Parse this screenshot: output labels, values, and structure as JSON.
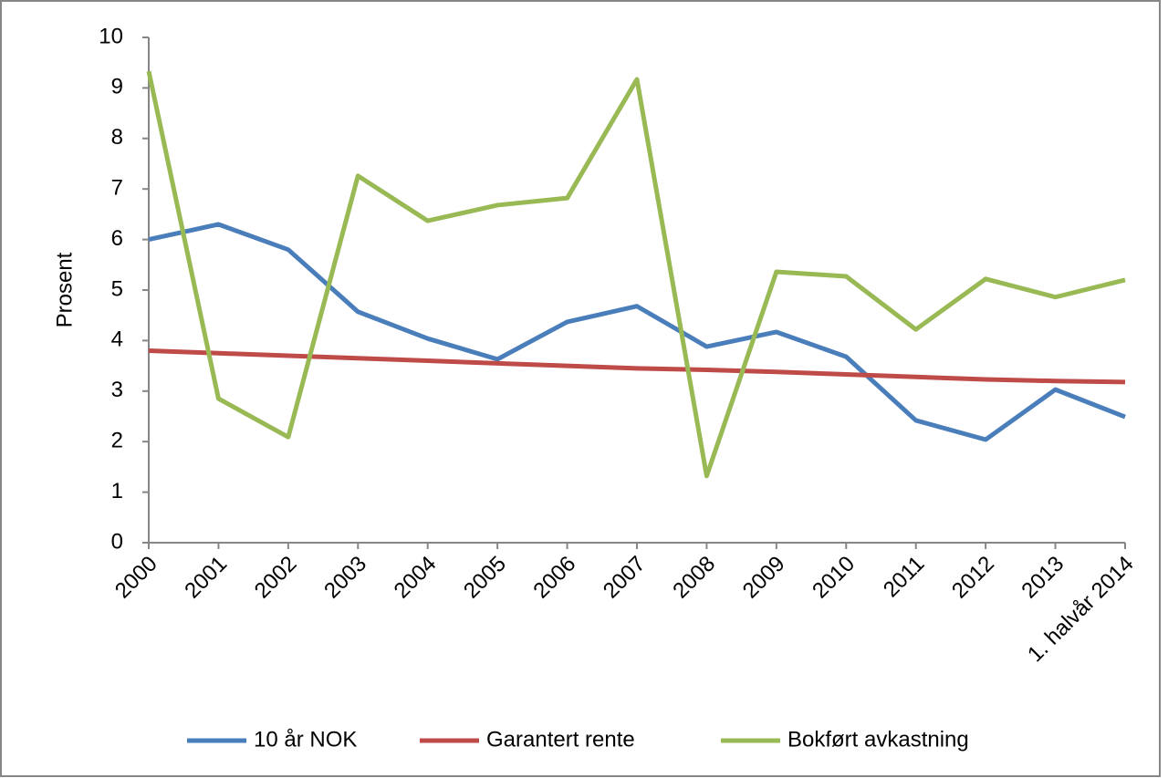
{
  "chart_data": {
    "type": "line",
    "y_label": "Prosent",
    "categories": [
      "2000",
      "2001",
      "2002",
      "2003",
      "2004",
      "2005",
      "2006",
      "2007",
      "2008",
      "2009",
      "2010",
      "2011",
      "2012",
      "2013",
      "1. halvår 2014"
    ],
    "series": [
      {
        "name": "10 år NOK",
        "color": "#4a7ebb",
        "values": [
          6.0,
          6.3,
          5.8,
          4.57,
          4.04,
          3.63,
          4.37,
          4.68,
          3.88,
          4.17,
          3.68,
          2.42,
          2.04,
          3.03,
          2.49
        ]
      },
      {
        "name": "Garantert rente",
        "color": "#be4b48",
        "values": [
          3.8,
          3.75,
          3.7,
          3.65,
          3.6,
          3.55,
          3.5,
          3.45,
          3.42,
          3.38,
          3.33,
          3.28,
          3.23,
          3.2,
          3.18
        ]
      },
      {
        "name": "Bokført avkastning",
        "color": "#98b954",
        "values": [
          9.33,
          2.85,
          2.09,
          7.26,
          6.37,
          6.68,
          6.82,
          9.17,
          1.32,
          5.36,
          5.27,
          4.22,
          5.22,
          4.86,
          5.2
        ]
      }
    ],
    "ylim": [
      0,
      10
    ],
    "yticks": [
      0,
      1,
      2,
      3,
      4,
      5,
      6,
      7,
      8,
      9,
      10
    ],
    "legend": "bottom"
  }
}
